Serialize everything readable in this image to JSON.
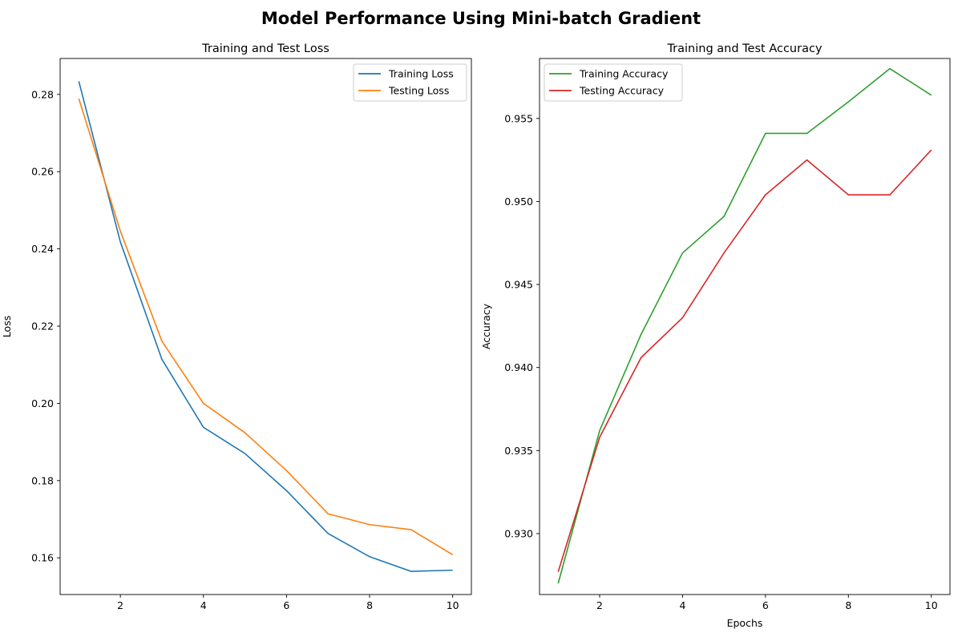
{
  "figure": {
    "title": "Model Performance Using Mini-batch Gradient"
  },
  "chart_data": [
    {
      "type": "line",
      "title": "Training and Test Loss",
      "xlabel": "",
      "ylabel": "Loss",
      "xlim": [
        0.55,
        10.45
      ],
      "ylim": [
        0.1505,
        0.2893
      ],
      "xticks": [
        2,
        4,
        6,
        8,
        10
      ],
      "yticks": [
        0.16,
        0.18,
        0.2,
        0.22,
        0.24,
        0.26,
        0.28
      ],
      "ytick_labels": [
        "0.16",
        "0.18",
        "0.20",
        "0.22",
        "0.24",
        "0.26",
        "0.28"
      ],
      "legend_position": "upper right",
      "grid": false,
      "x": [
        1,
        2,
        3,
        4,
        5,
        6,
        7,
        8,
        9,
        10
      ],
      "series": [
        {
          "name": "Training Loss",
          "color": "#1f77b4",
          "values": [
            0.2834,
            0.2418,
            0.2114,
            0.1938,
            0.187,
            0.1774,
            0.1663,
            0.1603,
            0.1565,
            0.1568
          ]
        },
        {
          "name": "Testing Loss",
          "color": "#ff7f0e",
          "values": [
            0.2789,
            0.2446,
            0.2161,
            0.2,
            0.1924,
            0.1826,
            0.1714,
            0.1686,
            0.1673,
            0.1608
          ]
        }
      ]
    },
    {
      "type": "line",
      "title": "Training and Test Accuracy",
      "xlabel": "Epochs",
      "ylabel": "Accuracy",
      "xlim": [
        0.55,
        10.45
      ],
      "ylim": [
        0.92633,
        0.95861
      ],
      "xticks": [
        2,
        4,
        6,
        8,
        10
      ],
      "yticks": [
        0.93,
        0.935,
        0.94,
        0.945,
        0.95,
        0.955
      ],
      "ytick_labels": [
        "0.930",
        "0.935",
        "0.940",
        "0.945",
        "0.950",
        "0.955"
      ],
      "legend_position": "upper left",
      "grid": false,
      "x": [
        1,
        2,
        3,
        4,
        5,
        6,
        7,
        8,
        9,
        10
      ],
      "series": [
        {
          "name": "Training Accuracy",
          "color": "#2ca02c",
          "values": [
            0.927,
            0.9362,
            0.942,
            0.9469,
            0.9491,
            0.9541,
            0.9541,
            0.956,
            0.958,
            0.9564
          ]
        },
        {
          "name": "Testing Accuracy",
          "color": "#d62728",
          "values": [
            0.9277,
            0.9358,
            0.9406,
            0.943,
            0.9469,
            0.9504,
            0.9525,
            0.9504,
            0.9504,
            0.9531
          ]
        }
      ]
    }
  ]
}
